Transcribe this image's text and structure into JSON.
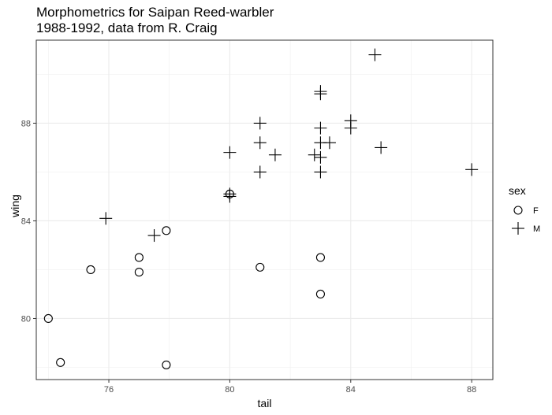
{
  "chart_data": {
    "type": "scatter",
    "title_lines": [
      "Morphometrics for Saipan Reed-warbler",
      "1988-1992, data from R. Craig"
    ],
    "xlabel": "tail",
    "ylabel": "wing",
    "xlim": [
      73.6,
      88.7
    ],
    "ylim": [
      77.5,
      91.4
    ],
    "x_ticks": [
      76,
      80,
      84,
      88
    ],
    "y_ticks": [
      80,
      84,
      88
    ],
    "grid": true,
    "legend": {
      "title": "sex",
      "position": "right",
      "entries": [
        {
          "label": "F",
          "shape": "circle"
        },
        {
          "label": "M",
          "shape": "plus"
        }
      ]
    },
    "series": [
      {
        "name": "F",
        "shape": "circle",
        "points": [
          [
            74.0,
            80.0
          ],
          [
            74.4,
            78.2
          ],
          [
            75.4,
            82.0
          ],
          [
            77.0,
            82.5
          ],
          [
            77.0,
            81.9
          ],
          [
            77.9,
            78.1
          ],
          [
            77.9,
            83.6
          ],
          [
            80.0,
            85.1
          ],
          [
            81.0,
            82.1
          ],
          [
            83.0,
            82.5
          ],
          [
            83.0,
            81.0
          ]
        ]
      },
      {
        "name": "M",
        "shape": "plus",
        "points": [
          [
            75.9,
            84.1
          ],
          [
            77.5,
            83.4
          ],
          [
            80.0,
            86.8
          ],
          [
            80.0,
            85.1
          ],
          [
            80.0,
            85.0
          ],
          [
            81.0,
            88.0
          ],
          [
            81.0,
            87.2
          ],
          [
            81.0,
            86.0
          ],
          [
            81.5,
            86.7
          ],
          [
            82.8,
            86.7
          ],
          [
            83.0,
            89.3
          ],
          [
            83.0,
            89.2
          ],
          [
            83.0,
            87.8
          ],
          [
            83.0,
            87.2
          ],
          [
            83.0,
            86.6
          ],
          [
            83.0,
            86.0
          ],
          [
            83.3,
            87.2
          ],
          [
            84.0,
            88.1
          ],
          [
            84.0,
            87.8
          ],
          [
            84.8,
            90.8
          ],
          [
            85.0,
            87.0
          ],
          [
            88.0,
            86.1
          ]
        ]
      }
    ]
  }
}
